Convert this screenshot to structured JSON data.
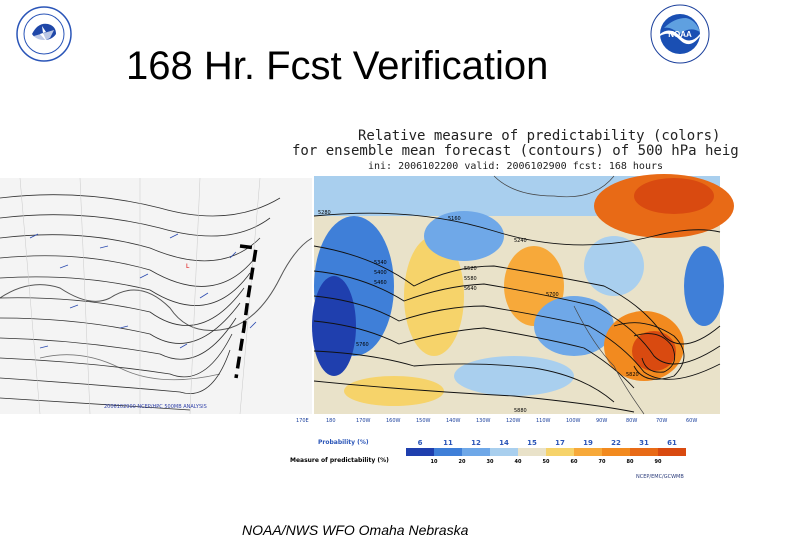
{
  "slide": {
    "title": "168 Hr. Fcst Verification",
    "footer": "NOAA/NWS WFO Omaha Nebraska"
  },
  "logos": {
    "left": "nws-logo",
    "right": "noaa-logo"
  },
  "panel": {
    "title_line1": "Relative measure of predictability (colors)",
    "title_line2": "for ensemble mean forecast (contours) of 500 hPa heig",
    "title_line3": "ini: 2006102200  valid: 2006102900  fcst: 168 hours",
    "credit": "NCEP/EMC/GCWMB",
    "left_credit": "2006102900 NCEP/HPC 500MB ANALYSIS"
  },
  "legend": {
    "probability_label": "Probability (%)",
    "probability_values": [
      "6",
      "11",
      "12",
      "14",
      "15",
      "17",
      "19",
      "22",
      "31",
      "61"
    ],
    "predictability_label": "Measure of predictability (%)",
    "predictability_values": [
      "10",
      "20",
      "30",
      "40",
      "50",
      "60",
      "70",
      "80",
      "90"
    ],
    "colors": [
      "#1f3fae",
      "#3f7fd8",
      "#6fa8e8",
      "#a9cfee",
      "#e9e2c9",
      "#f6d36a",
      "#f7a93a",
      "#f28a1f",
      "#e86a16",
      "#d94a10"
    ]
  },
  "contour_labels": [
    "5280",
    "5340",
    "5400",
    "5460",
    "5520",
    "5580",
    "5640",
    "5700",
    "5760",
    "5820",
    "5880",
    "5240",
    "5160"
  ],
  "lon_labels": [
    "170E",
    "180",
    "170W",
    "160W",
    "150W",
    "140W",
    "130W",
    "120W",
    "110W",
    "100W",
    "90W",
    "80W",
    "70W",
    "60W"
  ]
}
